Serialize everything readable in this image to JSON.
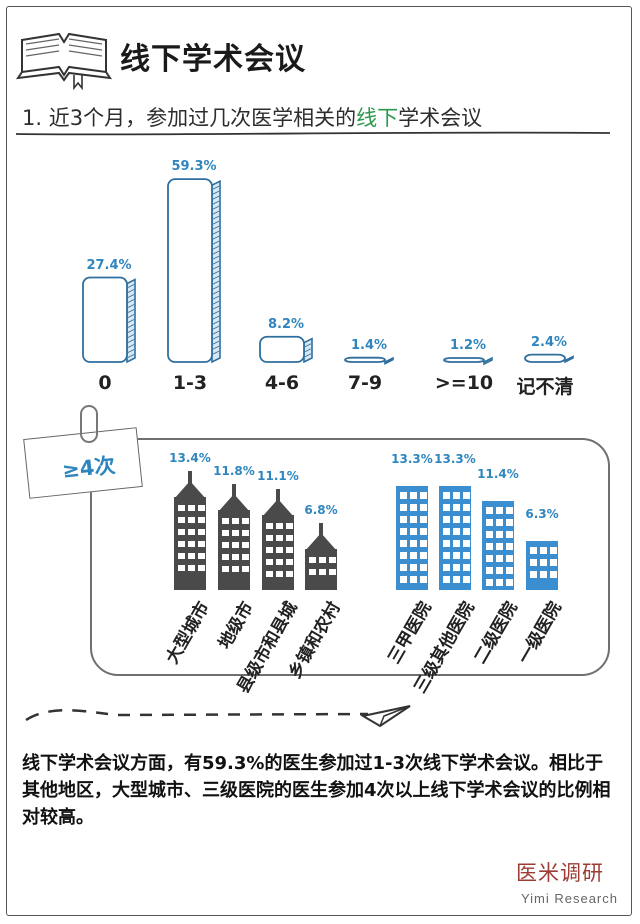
{
  "header": {
    "title": "线下学术会议",
    "subtitle_prefix": "1. 近3个月，参加过几次医学相关的",
    "subtitle_highlight": "线下",
    "subtitle_suffix": "学术会议",
    "accent_color": "#2f86bf",
    "highlight_color": "#2a9a4a"
  },
  "chart_data": [
    {
      "type": "bar",
      "categories": [
        "0",
        "1-3",
        "4-6",
        "7-9",
        ">=10",
        "记不清"
      ],
      "values": [
        27.4,
        59.3,
        8.2,
        1.4,
        1.2,
        2.4
      ],
      "value_labels": [
        "27.4%",
        "59.3%",
        "8.2%",
        "1.4%",
        "1.2%",
        "2.4%"
      ],
      "title": "",
      "xlabel": "",
      "ylabel": "",
      "ylim": [
        0,
        60
      ],
      "grid": false
    },
    {
      "type": "bar",
      "group_label": "≥4次",
      "categories": [
        "大型城市",
        "地级市",
        "县级市和县城",
        "乡镇和农村"
      ],
      "values": [
        13.4,
        11.8,
        11.1,
        6.8
      ],
      "value_labels": [
        "13.4%",
        "11.8%",
        "11.1%",
        "6.8%"
      ],
      "icon": "skyscraper-icon",
      "color": "#4a4a4a"
    },
    {
      "type": "bar",
      "group_label": "≥4次",
      "categories": [
        "三甲医院",
        "三级其他医院",
        "二级医院",
        "一级医院"
      ],
      "values": [
        13.3,
        13.3,
        11.4,
        6.3
      ],
      "value_labels": [
        "13.3%",
        "13.3%",
        "11.4%",
        "6.3%"
      ],
      "icon": "hospital-building-icon",
      "color": "#3b8fd0"
    }
  ],
  "summary": {
    "text": "线下学术会议方面，有59.3%的医生参加过1-3次线下学术会议。相比于其他地区，大型城市、三级医院的医生参加4次以上线下学术会议的比例相对较高。"
  },
  "branding": {
    "name": "医米调研",
    "name_en": "Yimi Research"
  }
}
